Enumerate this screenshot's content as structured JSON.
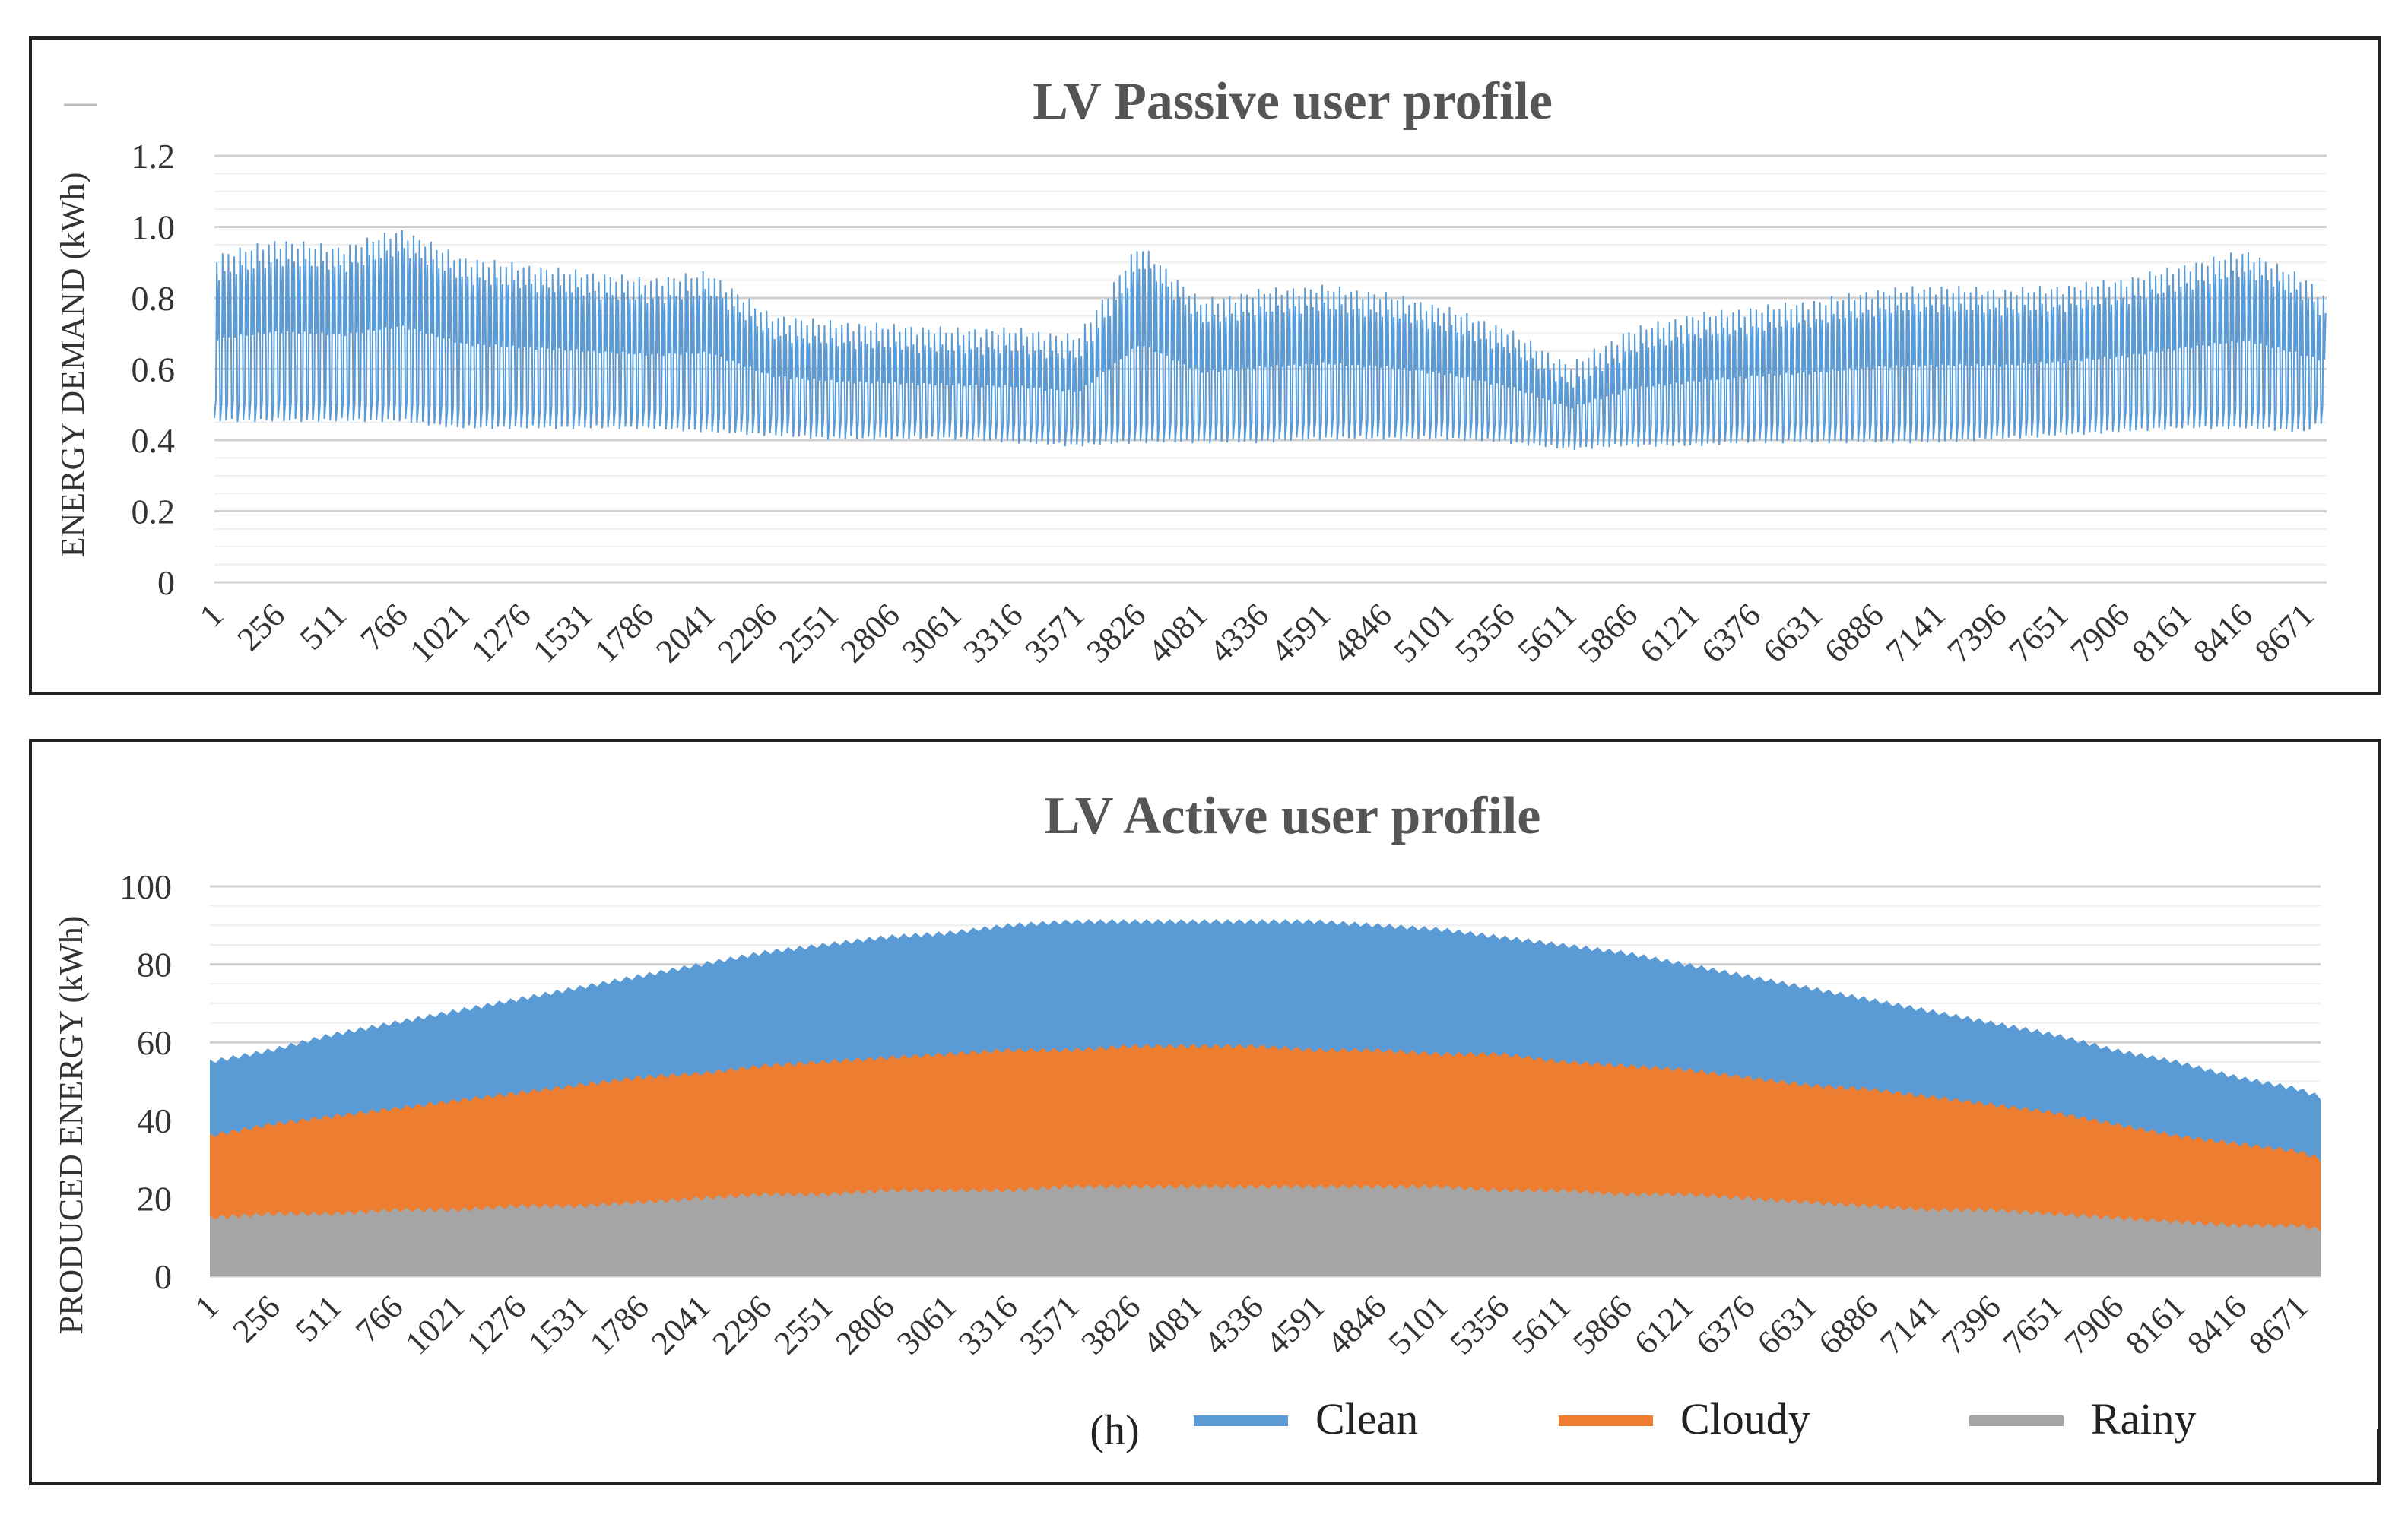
{
  "chart_data": [
    {
      "type": "line",
      "title": "LV Passive user profile",
      "xlabel": "",
      "ylabel": "ENERGY DEMAND (kWh)",
      "xlim": [
        1,
        8760
      ],
      "ylim": [
        0,
        1.2
      ],
      "yticks": [
        "0",
        "0.2",
        "0.4",
        "0.6",
        "0.8",
        "1.0",
        "1.2"
      ],
      "x_ticks": [
        "1",
        "256",
        "511",
        "766",
        "1021",
        "1276",
        "1531",
        "1786",
        "2041",
        "2296",
        "2551",
        "2806",
        "3061",
        "3316",
        "3571",
        "3826",
        "4081",
        "4336",
        "4591",
        "4846",
        "5101",
        "5356",
        "5611",
        "5866",
        "6121",
        "6376",
        "6631",
        "6886",
        "7141",
        "7396",
        "7651",
        "7906",
        "8161",
        "8416",
        "8671"
      ],
      "series": [
        {
          "name": "Energy demand",
          "color": "#5b9bd5",
          "envelope_x": [
            1,
            256,
            511,
            766,
            1021,
            1276,
            1531,
            1786,
            2041,
            2296,
            2551,
            2806,
            3061,
            3316,
            3571,
            3826,
            4081,
            4336,
            4591,
            4846,
            5101,
            5356,
            5611,
            5866,
            6121,
            6376,
            6631,
            6886,
            7141,
            7396,
            7651,
            7906,
            8161,
            8416,
            8671,
            8760
          ],
          "daily_max": [
            0.93,
            0.97,
            0.95,
            1.0,
            0.92,
            0.9,
            0.88,
            0.86,
            0.88,
            0.76,
            0.74,
            0.73,
            0.72,
            0.72,
            0.7,
            0.96,
            0.8,
            0.83,
            0.84,
            0.82,
            0.78,
            0.72,
            0.62,
            0.72,
            0.76,
            0.78,
            0.8,
            0.83,
            0.84,
            0.83,
            0.84,
            0.86,
            0.9,
            0.94,
            0.86,
            0.8
          ],
          "daily_min": [
            0.45,
            0.45,
            0.45,
            0.45,
            0.43,
            0.43,
            0.43,
            0.43,
            0.42,
            0.41,
            0.4,
            0.4,
            0.4,
            0.39,
            0.38,
            0.39,
            0.39,
            0.39,
            0.4,
            0.4,
            0.4,
            0.39,
            0.37,
            0.38,
            0.38,
            0.39,
            0.39,
            0.39,
            0.39,
            0.4,
            0.41,
            0.42,
            0.43,
            0.43,
            0.42,
            0.45
          ]
        }
      ]
    },
    {
      "type": "area",
      "title": "LV Active user profile",
      "xlabel": "(h)",
      "ylabel": "PRODUCED ENERGY (kWh)",
      "xlim": [
        1,
        8760
      ],
      "ylim": [
        0,
        100
      ],
      "yticks": [
        "0",
        "20",
        "40",
        "60",
        "80",
        "100"
      ],
      "x_ticks": [
        "1",
        "256",
        "511",
        "766",
        "1021",
        "1276",
        "1531",
        "1786",
        "2041",
        "2296",
        "2551",
        "2806",
        "3061",
        "3316",
        "3571",
        "3826",
        "4081",
        "4336",
        "4591",
        "4846",
        "5101",
        "5356",
        "5611",
        "5866",
        "6121",
        "6376",
        "6631",
        "6886",
        "7141",
        "7396",
        "7651",
        "7906",
        "8161",
        "8416",
        "8671"
      ],
      "x": [
        1,
        256,
        511,
        766,
        1021,
        1276,
        1531,
        1786,
        2041,
        2296,
        2551,
        2806,
        3061,
        3316,
        3571,
        3826,
        4081,
        4336,
        4591,
        4846,
        5101,
        5356,
        5611,
        5866,
        6121,
        6376,
        6631,
        6886,
        7141,
        7396,
        7651,
        7906,
        8161,
        8416,
        8671,
        8760
      ],
      "series": [
        {
          "name": "Clean",
          "color": "#5b9bd5",
          "values": [
            55,
            58,
            62,
            65,
            68,
            71,
            74,
            77,
            80,
            83,
            85,
            87,
            88,
            90,
            91,
            91,
            91,
            91,
            91,
            90,
            89,
            87,
            85,
            83,
            80,
            77,
            74,
            71,
            68,
            65,
            62,
            58,
            55,
            51,
            48,
            46
          ]
        },
        {
          "name": "Cloudy",
          "color": "#ed7d31",
          "values": [
            36,
            39,
            41,
            43,
            45,
            47,
            49,
            51,
            52,
            54,
            55,
            56,
            57,
            58,
            58,
            59,
            59,
            59,
            58,
            58,
            57,
            57,
            55,
            54,
            53,
            51,
            49,
            48,
            46,
            44,
            42,
            39,
            36,
            34,
            32,
            30
          ]
        },
        {
          "name": "Rainy",
          "color": "#a5a5a5",
          "values": [
            15,
            16,
            16,
            17,
            17,
            18,
            18,
            19,
            20,
            21,
            21,
            22,
            22,
            22,
            23,
            23,
            23,
            23,
            23,
            23,
            23,
            22,
            22,
            21,
            21,
            20,
            19,
            18,
            17,
            17,
            16,
            15,
            14,
            13,
            13,
            12
          ]
        }
      ],
      "legend": [
        "Clean",
        "Cloudy",
        "Rainy"
      ]
    }
  ]
}
